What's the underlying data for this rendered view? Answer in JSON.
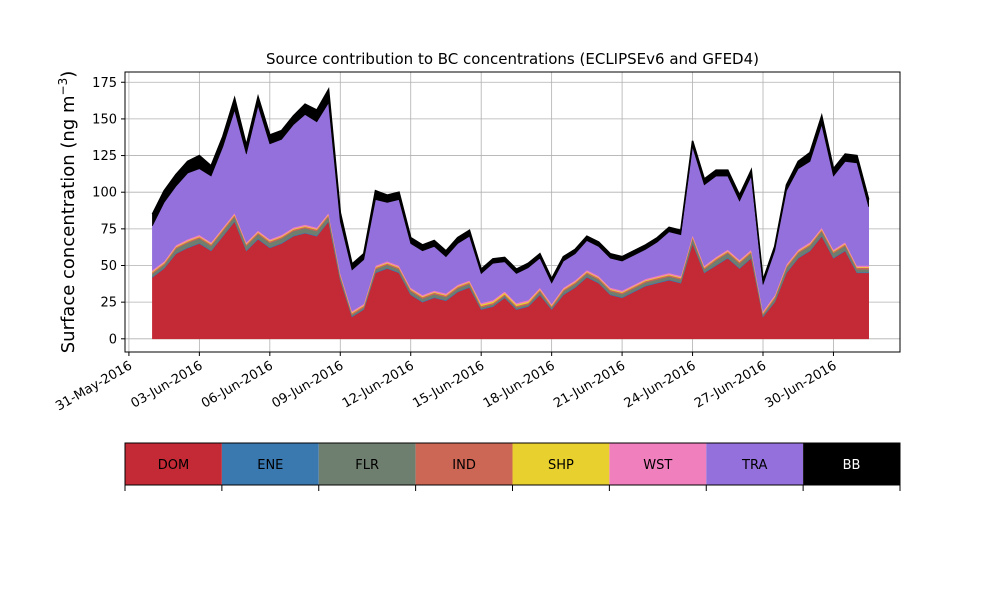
{
  "chart_data": {
    "type": "area",
    "title": "Source contribution to BC concentrations (ECLIPSEv6 and GFED4)",
    "ylabel": "Surface concentration (ng m$^{-3}$)",
    "xlabel": "",
    "ylim": [
      -9,
      182
    ],
    "yticks": [
      0,
      25,
      50,
      75,
      100,
      125,
      150,
      175
    ],
    "xlim": [
      "2016-05-30T20:00",
      "2016-07-02T20:00"
    ],
    "xticks": [
      "31-May-2016",
      "03-Jun-2016",
      "06-Jun-2016",
      "09-Jun-2016",
      "12-Jun-2016",
      "15-Jun-2016",
      "18-Jun-2016",
      "21-Jun-2016",
      "24-Jun-2016",
      "27-Jun-2016",
      "30-Jun-2016"
    ],
    "grid": true,
    "legend_placement": "below chart, horizontal color bar",
    "x": [
      "2016-06-01",
      "2016-06-01T12:00",
      "2016-06-02",
      "2016-06-02T12:00",
      "2016-06-03",
      "2016-06-03T12:00",
      "2016-06-04",
      "2016-06-04T12:00",
      "2016-06-05",
      "2016-06-05T12:00",
      "2016-06-06",
      "2016-06-06T12:00",
      "2016-06-07",
      "2016-06-07T12:00",
      "2016-06-08",
      "2016-06-08T12:00",
      "2016-06-09",
      "2016-06-09T12:00",
      "2016-06-10",
      "2016-06-10T12:00",
      "2016-06-11",
      "2016-06-11T12:00",
      "2016-06-12",
      "2016-06-12T12:00",
      "2016-06-13",
      "2016-06-13T12:00",
      "2016-06-14",
      "2016-06-14T12:00",
      "2016-06-15",
      "2016-06-15T12:00",
      "2016-06-16",
      "2016-06-16T12:00",
      "2016-06-17",
      "2016-06-17T12:00",
      "2016-06-18",
      "2016-06-18T12:00",
      "2016-06-19",
      "2016-06-19T12:00",
      "2016-06-20",
      "2016-06-20T12:00",
      "2016-06-21",
      "2016-06-21T12:00",
      "2016-06-22",
      "2016-06-22T12:00",
      "2016-06-23",
      "2016-06-23T12:00",
      "2016-06-24",
      "2016-06-24T12:00",
      "2016-06-25",
      "2016-06-25T12:00",
      "2016-06-26",
      "2016-06-26T12:00",
      "2016-06-27",
      "2016-06-27T12:00",
      "2016-06-28",
      "2016-06-28T12:00",
      "2016-06-29",
      "2016-06-29T12:00",
      "2016-06-30",
      "2016-06-30T12:00",
      "2016-07-01",
      "2016-07-01T12:00"
    ],
    "series": [
      {
        "name": "DOM",
        "color": "#c42a35",
        "values": [
          42,
          48,
          58,
          62,
          65,
          60,
          70,
          80,
          60,
          68,
          62,
          65,
          70,
          72,
          70,
          80,
          40,
          15,
          20,
          45,
          48,
          45,
          30,
          25,
          28,
          26,
          32,
          35,
          20,
          22,
          28,
          20,
          22,
          30,
          20,
          30,
          35,
          42,
          38,
          30,
          28,
          32,
          36,
          38,
          40,
          38,
          65,
          45,
          50,
          55,
          48,
          55,
          15,
          25,
          45,
          55,
          60,
          70,
          55,
          60,
          45,
          45
        ]
      },
      {
        "name": "ENE",
        "color": "#3a78b0",
        "values": [
          0.5,
          0.5,
          0.5,
          0.5,
          0.5,
          0.5,
          0.5,
          0.5,
          0.5,
          0.5,
          0.5,
          0.5,
          0.5,
          0.5,
          0.5,
          0.5,
          0.5,
          0.5,
          0.5,
          0.5,
          0.5,
          0.5,
          0.5,
          0.5,
          0.5,
          0.5,
          0.5,
          0.5,
          0.5,
          0.5,
          0.5,
          0.5,
          0.5,
          0.5,
          0.5,
          0.5,
          0.5,
          0.5,
          0.5,
          0.5,
          0.5,
          0.5,
          0.5,
          0.5,
          0.5,
          0.5,
          0.5,
          0.5,
          0.5,
          0.5,
          0.5,
          0.5,
          0.5,
          0.5,
          0.5,
          0.5,
          0.5,
          0.5,
          0.5,
          0.5,
          0.5,
          0.5
        ]
      },
      {
        "name": "FLR",
        "color": "#6f7f6f",
        "values": [
          2,
          2,
          3,
          3,
          3,
          3,
          3,
          3,
          3,
          3,
          3,
          3,
          3,
          3,
          3,
          3,
          2,
          1,
          1,
          2,
          2,
          2,
          2,
          2,
          2,
          2,
          2,
          2,
          1,
          1,
          1,
          1,
          1,
          2,
          1,
          2,
          2,
          2,
          2,
          2,
          2,
          2,
          2,
          2,
          2,
          2,
          3,
          2,
          3,
          3,
          3,
          3,
          1,
          2,
          3,
          3,
          3,
          3,
          3,
          3,
          2,
          2
        ]
      },
      {
        "name": "IND",
        "color": "#cc6655",
        "values": [
          1,
          1,
          1,
          1,
          1,
          1,
          1,
          1,
          1,
          1,
          1,
          1,
          1,
          1,
          1,
          1,
          1,
          1,
          1,
          1,
          1,
          1,
          1,
          1,
          1,
          1,
          1,
          1,
          1,
          1,
          1,
          1,
          1,
          1,
          1,
          1,
          1,
          1,
          1,
          1,
          1,
          1,
          1,
          1,
          1,
          1,
          1,
          1,
          1,
          1,
          1,
          1,
          1,
          1,
          1,
          1,
          1,
          1,
          1,
          1,
          1,
          1
        ]
      },
      {
        "name": "SHP",
        "color": "#e8d02e",
        "values": [
          0.5,
          0.5,
          0.5,
          0.5,
          0.5,
          0.5,
          0.5,
          0.5,
          0.5,
          0.5,
          0.5,
          0.5,
          0.5,
          0.5,
          0.5,
          0.5,
          0.5,
          0.5,
          0.5,
          0.5,
          0.5,
          0.5,
          0.5,
          0.5,
          0.5,
          0.5,
          0.5,
          0.5,
          1,
          1,
          1,
          1,
          1,
          0.5,
          0.5,
          0.5,
          0.5,
          0.5,
          0.5,
          0.5,
          0.5,
          0.5,
          0.5,
          0.5,
          0.5,
          0.5,
          0.5,
          0.5,
          0.5,
          0.5,
          0.5,
          0.5,
          0.5,
          0.5,
          0.5,
          0.5,
          0.5,
          0.5,
          0.5,
          0.5,
          0.5,
          0.5
        ]
      },
      {
        "name": "WST",
        "color": "#f07fbd",
        "values": [
          1,
          1,
          1,
          1,
          1,
          1,
          1,
          1,
          1,
          1,
          1,
          1,
          1,
          1,
          1,
          1,
          1,
          1,
          1,
          1,
          1,
          1,
          1,
          1,
          1,
          1,
          1,
          1,
          1,
          1,
          1,
          1,
          1,
          1,
          1,
          1,
          1,
          1,
          1,
          1,
          1,
          1,
          1,
          1,
          1,
          1,
          1,
          1,
          1,
          1,
          1,
          1,
          1,
          1,
          1,
          1,
          1,
          1,
          1,
          1,
          1,
          1
        ]
      },
      {
        "name": "TRA",
        "color": "#9370db",
        "values": [
          30,
          40,
          40,
          45,
          45,
          45,
          55,
          70,
          60,
          85,
          65,
          65,
          70,
          75,
          72,
          75,
          35,
          28,
          30,
          45,
          40,
          45,
          30,
          30,
          30,
          25,
          28,
          30,
          20,
          25,
          20,
          20,
          22,
          20,
          14,
          18,
          18,
          20,
          20,
          20,
          20,
          20,
          20,
          23,
          28,
          28,
          60,
          55,
          55,
          50,
          40,
          50,
          18,
          30,
          50,
          55,
          55,
          70,
          50,
          55,
          70,
          40
        ]
      },
      {
        "name": "BB",
        "color": "#000000",
        "values": [
          8,
          8,
          8,
          8,
          9,
          7,
          7,
          8,
          6,
          6,
          6,
          6,
          6,
          7,
          8,
          9,
          6,
          4,
          4,
          6,
          5,
          5,
          4,
          4,
          4,
          4,
          4,
          4,
          3,
          3,
          3,
          3,
          3,
          3,
          3,
          3,
          3,
          3,
          3,
          3,
          3,
          3,
          3,
          3,
          3,
          3,
          4,
          4,
          4,
          4,
          4,
          4,
          3,
          3,
          4,
          5,
          6,
          6,
          5,
          5,
          5,
          5
        ]
      }
    ]
  }
}
